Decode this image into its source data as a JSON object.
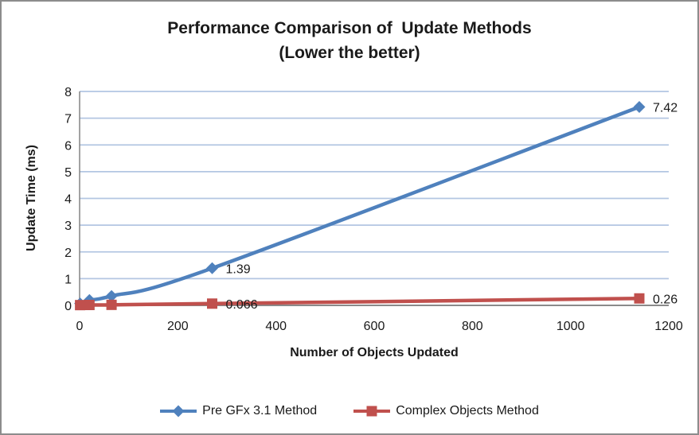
{
  "window": {
    "background": "#FFFFFF",
    "border_color": "#8C8C8C"
  },
  "title": {
    "line1": "Performance Comparison of  Update Methods",
    "line2": "(Lower the better)"
  },
  "chart_data": {
    "type": "line",
    "title": "Performance Comparison of  Update Methods (Lower the better)",
    "xlabel": "Number of Objects Updated",
    "ylabel": "Update Time (ms)",
    "xlim": [
      0,
      1200
    ],
    "ylim": [
      0,
      8
    ],
    "x_ticks": [
      0,
      200,
      400,
      600,
      800,
      1000,
      1200
    ],
    "y_ticks": [
      0,
      1,
      2,
      3,
      4,
      5,
      6,
      7,
      8
    ],
    "grid": "horizontal-only",
    "gridline_color": "#B3C6E2",
    "axis_color": "#8A8A8A",
    "text_color": "#1A1A1A",
    "legend_position": "bottom-center",
    "x": [
      1,
      20,
      65,
      270,
      1140
    ],
    "series": [
      {
        "name": "Pre GFx 3.1 Method",
        "color": "#4F81BD",
        "marker": "diamond",
        "values": [
          0.07,
          0.2,
          0.35,
          1.39,
          7.42
        ],
        "point_labels": [
          "",
          "",
          "",
          "1.39",
          "7.42"
        ]
      },
      {
        "name": "Complex Objects Method",
        "color": "#C0504D",
        "marker": "square",
        "values": [
          0.01,
          0.015,
          0.02,
          0.066,
          0.26
        ],
        "point_labels": [
          "",
          "",
          "",
          "0.066",
          "0.26"
        ]
      }
    ]
  }
}
